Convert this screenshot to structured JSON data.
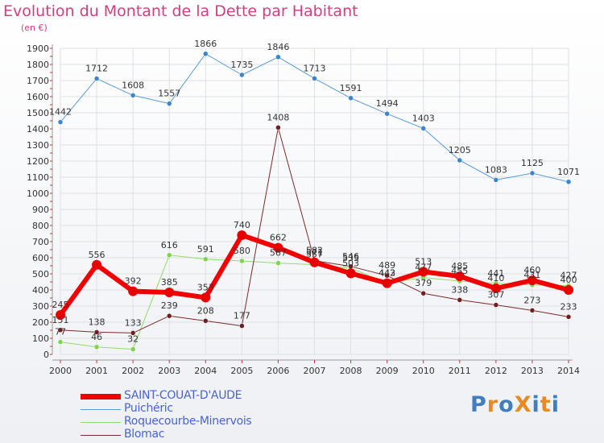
{
  "title": "Evolution du Montant de la Dette par Habitant",
  "unit_label": "(en €)",
  "logo": {
    "text": "ProXiti",
    "colors": [
      "#3f7fc0",
      "#e88a20",
      "#3f7fc0",
      "#e88a20",
      "#3f7fc0",
      "#e88a20",
      "#3f7fc0"
    ]
  },
  "chart_data": {
    "type": "line",
    "title": "Evolution du Montant de la Dette par Habitant",
    "ylabel": "(en €)",
    "xlabel": "",
    "ylim": [
      0,
      1900
    ],
    "yticks": [
      0,
      100,
      200,
      300,
      400,
      500,
      600,
      700,
      800,
      900,
      1000,
      1100,
      1200,
      1300,
      1400,
      1500,
      1600,
      1700,
      1800,
      1900
    ],
    "x": [
      "2000",
      "2001",
      "2002",
      "2003",
      "2004",
      "2005",
      "2006",
      "2007",
      "2008",
      "2009",
      "2010",
      "2011",
      "2012",
      "2013",
      "2014"
    ],
    "series": [
      {
        "name": "Puichéric",
        "color": "#5a9bd4",
        "dot": "#3c85c8",
        "width": 1,
        "values": [
          1442,
          1712,
          1608,
          1557,
          1866,
          1735,
          1846,
          1713,
          1591,
          1494,
          1403,
          1205,
          1083,
          1125,
          1071
        ]
      },
      {
        "name": "Roquecourbe-Minervois",
        "color": "#8fdc6a",
        "dot": "#7fd34e",
        "width": 1,
        "values": [
          77,
          46,
          32,
          616,
          591,
          580,
          567,
          557,
          535,
          443,
          477,
          455,
          441,
          431,
          427
        ]
      },
      {
        "name": "Blomac",
        "color": "#7a2a2a",
        "dot": "#6e1f1f",
        "width": 1,
        "values": [
          151,
          138,
          133,
          239,
          208,
          177,
          1408,
          582,
          546,
          489,
          379,
          338,
          307,
          273,
          233
        ]
      },
      {
        "name": "SAINT-COUAT-D'AUDE",
        "color": "#f00000",
        "dot": "#e80000",
        "width": 6,
        "values": [
          245,
          556,
          392,
          385,
          353,
          740,
          662,
          571,
          503,
          442,
          513,
          485,
          410,
          460,
          400
        ]
      }
    ],
    "legend": [
      {
        "name": "SAINT-COUAT-D'AUDE",
        "color": "#f00000",
        "width": 7
      },
      {
        "name": "Puichéric",
        "color": "#5a9bd4",
        "width": 1
      },
      {
        "name": "Roquecourbe-Minervois",
        "color": "#8fdc6a",
        "width": 1
      },
      {
        "name": "Blomac",
        "color": "#7a2a2a",
        "width": 1
      }
    ]
  }
}
